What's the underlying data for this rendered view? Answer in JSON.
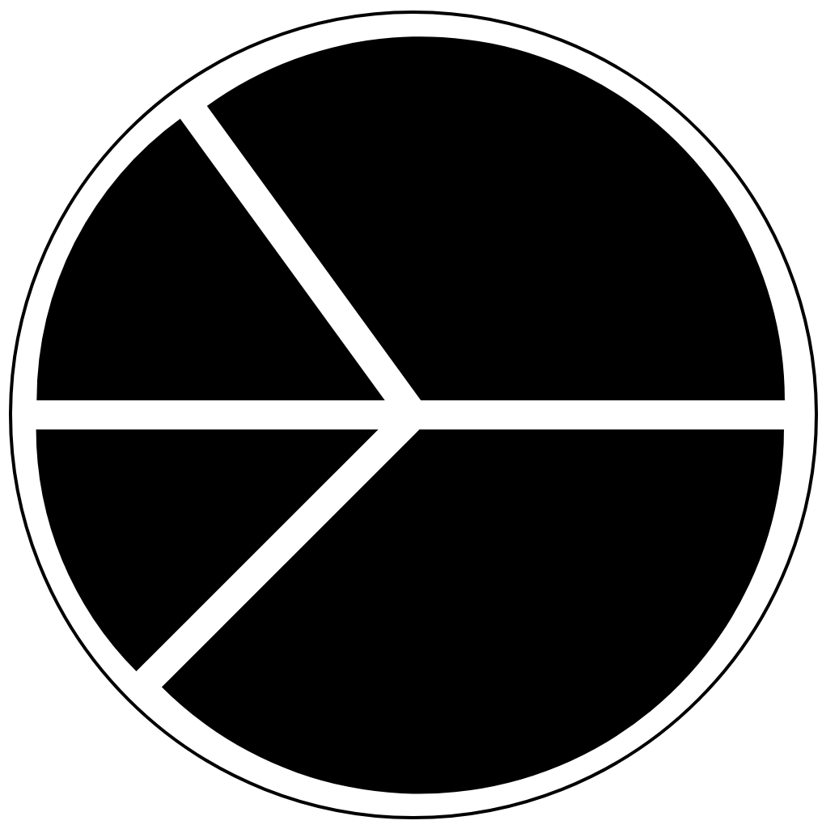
{
  "chart_data": {
    "type": "pie",
    "categories": [
      null,
      null,
      null,
      null
    ],
    "values": [
      35,
      15,
      12.5,
      37.5
    ],
    "colors": [
      "#000000",
      "#000000",
      "#000000",
      "#000000"
    ]
  }
}
